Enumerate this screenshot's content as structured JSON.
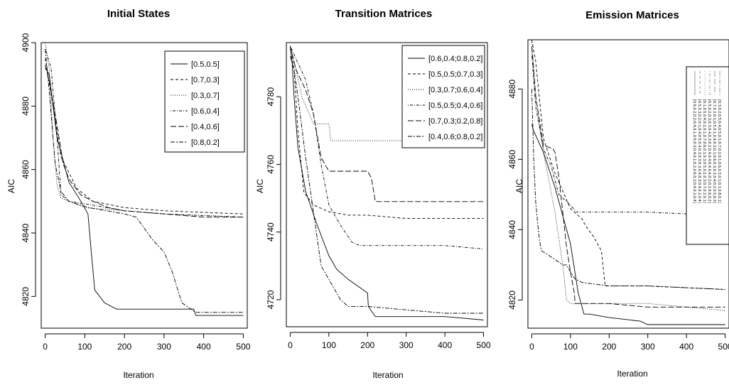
{
  "chart_data": [
    {
      "type": "line",
      "title": "Initial States",
      "xlabel": "Iteration",
      "ylabel": "AIC",
      "xlim": [
        -10,
        510
      ],
      "ylim": [
        4810,
        4900
      ],
      "x_ticks": [
        0,
        100,
        200,
        300,
        400,
        500
      ],
      "y_ticks": [
        4820,
        4840,
        4860,
        4880,
        4900
      ],
      "legend_position": "top-right",
      "series": [
        {
          "name": "[0.5,0.5]",
          "dash": "solid",
          "x": [
            0,
            10,
            30,
            60,
            90,
            108,
            115,
            125,
            150,
            180,
            250,
            375,
            380,
            500
          ],
          "y": [
            4892,
            4890,
            4870,
            4856,
            4850,
            4846,
            4836,
            4822,
            4818,
            4816,
            4816,
            4816,
            4814,
            4814
          ]
        },
        {
          "name": "[0.7,0.3]",
          "dash": "short",
          "x": [
            0,
            20,
            40,
            80,
            120,
            200,
            300,
            500
          ],
          "y": [
            4895,
            4880,
            4864,
            4854,
            4850,
            4848,
            4847,
            4846
          ]
        },
        {
          "name": "[0.3,0.7]",
          "dash": "dot",
          "x": [
            0,
            10,
            20,
            30,
            40,
            100,
            200,
            300,
            500
          ],
          "y": [
            4900,
            4892,
            4870,
            4855,
            4851,
            4848,
            4847,
            4846,
            4845
          ]
        },
        {
          "name": "[0.6,0.4]",
          "dash": "dotdash",
          "x": [
            0,
            15,
            30,
            40,
            60,
            110,
            200,
            300,
            500
          ],
          "y": [
            4898,
            4892,
            4870,
            4852,
            4850,
            4849,
            4847,
            4846,
            4845
          ]
        },
        {
          "name": "[0.4,0.6]",
          "dash": "long",
          "x": [
            0,
            10,
            30,
            45,
            60,
            90,
            120,
            160,
            200,
            300,
            400,
            500
          ],
          "y": [
            4893,
            4888,
            4874,
            4862,
            4857,
            4852,
            4850,
            4848,
            4847,
            4846,
            4845,
            4845
          ]
        },
        {
          "name": "[0.8,0.2]",
          "dash": "twodash",
          "x": [
            0,
            10,
            25,
            40,
            60,
            110,
            200,
            230,
            270,
            300,
            320,
            345,
            380,
            500
          ],
          "y": [
            4898,
            4885,
            4862,
            4853,
            4850,
            4848,
            4846,
            4845,
            4838,
            4834,
            4828,
            4818,
            4815,
            4815
          ]
        }
      ]
    },
    {
      "type": "line",
      "title": "Transition Matrices",
      "xlabel": "Iteration",
      "ylabel": "AIC",
      "xlim": [
        -10,
        510
      ],
      "ylim": [
        4712,
        4796
      ],
      "x_ticks": [
        0,
        100,
        200,
        300,
        400,
        500
      ],
      "y_ticks": [
        4720,
        4740,
        4760,
        4780
      ],
      "legend_position": "top-right",
      "series": [
        {
          "name": "[0.6,0.4;0.8,0.2]",
          "dash": "solid",
          "x": [
            0,
            5,
            10,
            20,
            40,
            70,
            100,
            120,
            150,
            200,
            202,
            220,
            300,
            400,
            500
          ],
          "y": [
            4795,
            4790,
            4780,
            4765,
            4752,
            4742,
            4733,
            4729,
            4726,
            4722,
            4718,
            4715,
            4715,
            4715,
            4714
          ]
        },
        {
          "name": "[0.5,0.5;0.7,0.3]",
          "dash": "short",
          "x": [
            0,
            10,
            20,
            35,
            40,
            60,
            100,
            150,
            200,
            300,
            500
          ],
          "y": [
            4795,
            4788,
            4770,
            4752,
            4751,
            4748,
            4746,
            4745,
            4745,
            4744,
            4744
          ]
        },
        {
          "name": "[0.3,0.7;0.6,0.4]",
          "dash": "dot",
          "x": [
            0,
            15,
            30,
            60,
            90,
            100,
            105,
            110,
            300
          ],
          "y": [
            4795,
            4788,
            4780,
            4772,
            4772,
            4772,
            4767,
            4767,
            4767
          ]
        },
        {
          "name": "[0.5,0.5;0.4,0.6]",
          "dash": "dotdash",
          "x": [
            0,
            20,
            40,
            60,
            80,
            100,
            130,
            160,
            180,
            220,
            300,
            400,
            500
          ],
          "y": [
            4795,
            4790,
            4785,
            4775,
            4760,
            4748,
            4742,
            4737,
            4736,
            4736,
            4736,
            4736,
            4735
          ]
        },
        {
          "name": "[0.7,0.3;0.2,0.8]",
          "dash": "long",
          "x": [
            0,
            15,
            40,
            60,
            80,
            100,
            120,
            200,
            210,
            220,
            300,
            500
          ],
          "y": [
            4795,
            4788,
            4782,
            4775,
            4762,
            4758,
            4758,
            4758,
            4756,
            4749,
            4749,
            4749
          ]
        },
        {
          "name": "[0.4,0.6;0.8,0.2]",
          "dash": "twodash",
          "x": [
            0,
            10,
            20,
            40,
            80,
            130,
            150,
            200,
            300,
            400,
            500
          ],
          "y": [
            4792,
            4788,
            4780,
            4762,
            4730,
            4720,
            4718,
            4718,
            4717,
            4716,
            4716
          ]
        }
      ]
    },
    {
      "type": "line",
      "title": "Emission Matrices",
      "xlabel": "Iteration",
      "ylabel": "AIC",
      "xlim": [
        -10,
        510
      ],
      "ylim": [
        4812,
        4894
      ],
      "x_ticks": [
        0,
        100,
        200,
        300,
        400,
        500
      ],
      "y_ticks": [
        4820,
        4840,
        4860,
        4880
      ],
      "legend_position": "top-right",
      "legend_entries": [
        "[0.6,0.2,0.2;0.4,0.1,0.5;0.3,0.4,0.1;0.2,0.6,0.2;0.4,0.2,0.4]",
        "[0.5,0.3,0.2;0.1,0.4,0.5;0.4,0.3,0.3;0.3,0.4,0.3;0.4,0.2,0.4]",
        "[0.1,0.5,0.4;0.2,0.1,0.7;0.6,0.1,0.3;0.5,0.2,0.3;0.7,0.2,0.1]",
        "[0.5,0.2,0.3;0.3,0.4,0.3;0.2,0.4,0.4;0.4,0.4,0.2;0.2,0.6,0.2]",
        "[0.7,0.2,0.1;0.5,0.1,0.4;0.3,0.1,0.6;0.3,0.3,0.4;0.2,0.5,0.3]",
        "[0.3,0.2,0.5;0.4,0.5,0.1;0.7,0.2,0.1;0.6,0.3,0.1;0.1,0.8,0.1]"
      ],
      "series": [
        {
          "name": "[0.6,0.2,0.2;0.4,0.1,0.5;0.3,0.4,0.1;0.2,0.6,0.2;0.4,0.2,0.4]",
          "dash": "solid",
          "x": [
            0,
            5,
            30,
            60,
            100,
            120,
            135,
            150,
            200,
            280,
            300,
            400,
            500
          ],
          "y": [
            4870,
            4868,
            4862,
            4852,
            4836,
            4822,
            4816,
            4816,
            4815,
            4814,
            4813,
            4813,
            4813
          ]
        },
        {
          "name": "[0.5,0.3,0.2;0.1,0.4,0.5;0.4,0.3,0.3;0.3,0.4,0.3;0.4,0.2,0.4]",
          "dash": "short",
          "x": [
            0,
            10,
            30,
            60,
            100,
            130,
            140,
            160,
            180,
            190,
            200,
            300,
            500
          ],
          "y": [
            4894,
            4888,
            4866,
            4856,
            4846,
            4843,
            4841,
            4838,
            4834,
            4824,
            4824,
            4824,
            4823
          ]
        },
        {
          "name": "[0.1,0.5,0.4;0.2,0.1,0.7;0.6,0.1,0.3;0.5,0.2,0.3;0.7,0.2,0.1]",
          "dash": "dot",
          "x": [
            0,
            10,
            30,
            60,
            80,
            90,
            100,
            200,
            300,
            500
          ],
          "y": [
            4894,
            4878,
            4862,
            4845,
            4830,
            4820,
            4819,
            4819,
            4819,
            4817
          ]
        },
        {
          "name": "[0.5,0.2,0.3;0.3,0.4,0.3;0.2,0.4,0.4;0.4,0.4,0.2;0.2,0.6,0.2]",
          "dash": "dotdash",
          "x": [
            0,
            10,
            30,
            50,
            70,
            100,
            115,
            200,
            300,
            500
          ],
          "y": [
            4890,
            4875,
            4863,
            4858,
            4850,
            4847,
            4845,
            4845,
            4845,
            4844
          ]
        },
        {
          "name": "[0.7,0.2,0.1;0.5,0.1,0.4;0.3,0.1,0.6;0.3,0.3,0.4;0.2,0.5,0.3]",
          "dash": "long",
          "x": [
            0,
            10,
            30,
            55,
            60,
            70,
            80,
            90,
            100,
            110,
            112,
            200,
            300,
            500
          ],
          "y": [
            4892,
            4878,
            4864,
            4863,
            4862,
            4855,
            4845,
            4835,
            4828,
            4822,
            4819,
            4819,
            4818,
            4818
          ]
        },
        {
          "name": "[0.3,0.2,0.5;0.4,0.5,0.1;0.7,0.2,0.1;0.6,0.3,0.1;0.1,0.8,0.1]",
          "dash": "twodash",
          "x": [
            0,
            5,
            10,
            15,
            20,
            25,
            40,
            80,
            90,
            100,
            112,
            130,
            200,
            300,
            500
          ],
          "y": [
            4880,
            4860,
            4848,
            4842,
            4837,
            4834,
            4833,
            4830,
            4830,
            4828,
            4826,
            4825,
            4824,
            4824,
            4823
          ]
        }
      ]
    }
  ]
}
